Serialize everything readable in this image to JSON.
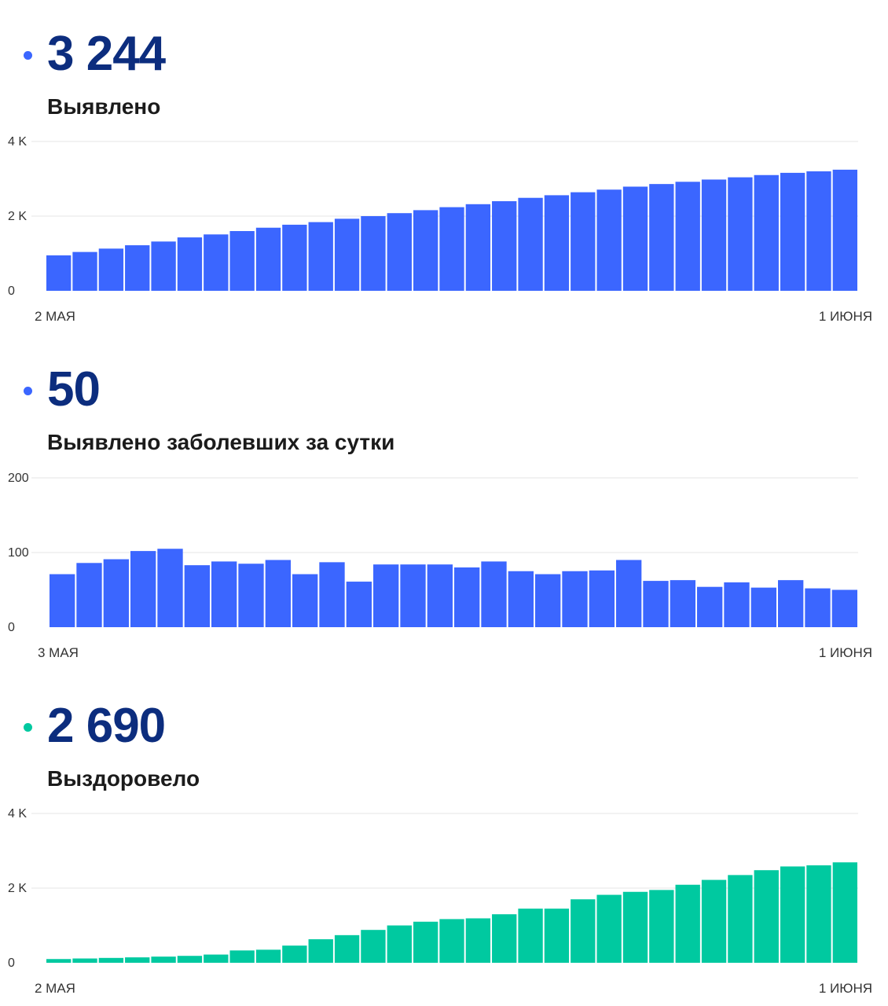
{
  "panels": [
    {
      "value": "3 244",
      "label": "Выявлено",
      "dot_color": "#3b66ff",
      "chart_data": {
        "type": "bar",
        "color": "#3b66ff",
        "x_start_label": "2 МАЯ",
        "x_end_label": "1 ИЮНЯ",
        "y_ticks": [
          0,
          2000,
          4000
        ],
        "y_tick_labels": [
          "0",
          "2 K",
          "4 K"
        ],
        "ylim": [
          0,
          4000
        ],
        "values": [
          950,
          1040,
          1130,
          1220,
          1320,
          1430,
          1510,
          1600,
          1690,
          1770,
          1840,
          1930,
          2000,
          2080,
          2160,
          2240,
          2320,
          2400,
          2490,
          2560,
          2640,
          2710,
          2790,
          2860,
          2920,
          2980,
          3040,
          3100,
          3160,
          3200,
          3244
        ]
      }
    },
    {
      "value": "50",
      "label": "Выявлено заболевших за сутки",
      "dot_color": "#3b66ff",
      "chart_data": {
        "type": "bar",
        "color": "#3b66ff",
        "x_start_label": "3 МАЯ",
        "x_end_label": "1 ИЮНЯ",
        "y_ticks": [
          0,
          100,
          200
        ],
        "y_tick_labels": [
          "0",
          "100",
          "200"
        ],
        "ylim": [
          0,
          200
        ],
        "values": [
          71,
          86,
          91,
          102,
          105,
          83,
          88,
          85,
          90,
          71,
          87,
          61,
          84,
          84,
          84,
          80,
          88,
          75,
          71,
          75,
          76,
          90,
          62,
          63,
          54,
          60,
          53,
          63,
          52,
          50
        ]
      }
    },
    {
      "value": "2 690",
      "label": "Выздоровело",
      "dot_color": "#00c9a0",
      "chart_data": {
        "type": "bar",
        "color": "#00c9a0",
        "x_start_label": "2 МАЯ",
        "x_end_label": "1 ИЮНЯ",
        "y_ticks": [
          0,
          2000,
          4000
        ],
        "y_tick_labels": [
          "0",
          "2 K",
          "4 K"
        ],
        "ylim": [
          0,
          4000
        ],
        "values": [
          100,
          115,
          130,
          145,
          165,
          185,
          220,
          330,
          350,
          460,
          630,
          740,
          880,
          1000,
          1100,
          1170,
          1190,
          1300,
          1450,
          1450,
          1700,
          1820,
          1900,
          1950,
          2090,
          2220,
          2350,
          2480,
          2580,
          2610,
          2690
        ]
      }
    }
  ]
}
